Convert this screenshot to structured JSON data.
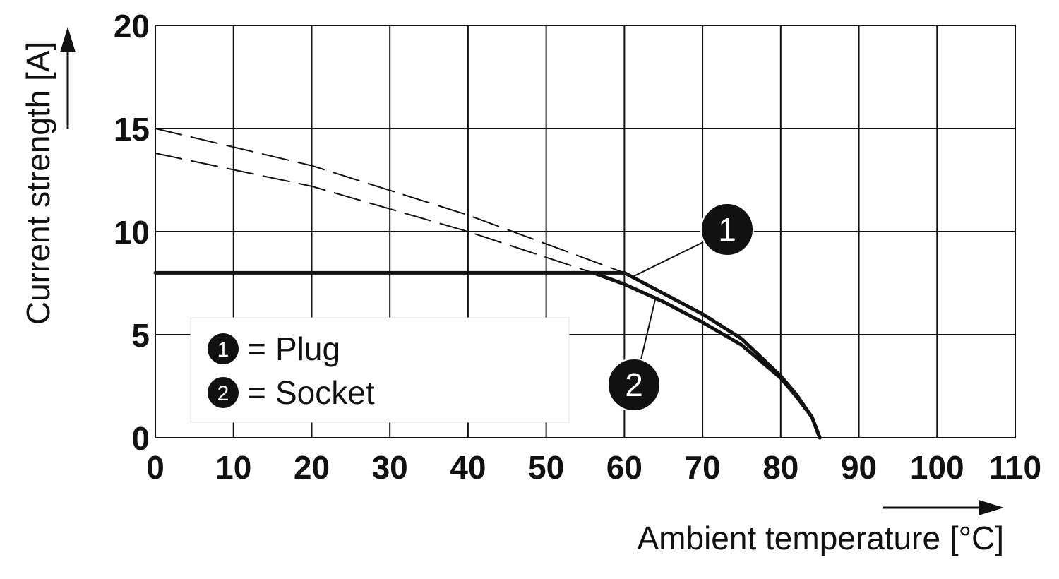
{
  "chart_data": {
    "type": "line",
    "xlabel": "Ambient temperature [°C]",
    "ylabel": "Current strength [A]",
    "xlim": [
      0,
      110
    ],
    "ylim": [
      0,
      20
    ],
    "x_ticks": [
      "0",
      "10",
      "20",
      "30",
      "40",
      "50",
      "60",
      "70",
      "80",
      "90",
      "100",
      "110"
    ],
    "y_ticks": [
      "0",
      "5",
      "10",
      "15",
      "20"
    ],
    "grid": true,
    "legend_position": "bottom-left",
    "legend": [
      {
        "marker": "1",
        "sep": "=",
        "label": "Plug"
      },
      {
        "marker": "2",
        "sep": "=",
        "label": "Socket"
      }
    ],
    "series": [
      {
        "marker": "1",
        "style": "solid",
        "x": [
          0,
          10,
          20,
          30,
          40,
          50,
          56,
          60,
          65,
          70,
          75,
          80,
          82,
          84,
          85
        ],
        "y": [
          8,
          8,
          8,
          8,
          8,
          8,
          8,
          8,
          7.0,
          6.0,
          4.8,
          3.0,
          2.1,
          1.0,
          0
        ]
      },
      {
        "marker": "2",
        "style": "solid",
        "x": [
          56,
          60,
          65,
          70,
          75,
          80,
          82,
          84,
          85
        ],
        "y": [
          8,
          7.45,
          6.6,
          5.6,
          4.5,
          2.9,
          2.0,
          1.0,
          0
        ]
      },
      {
        "marker": "1",
        "style": "dashed",
        "x": [
          0,
          20,
          40,
          60
        ],
        "y": [
          15.0,
          13.2,
          10.8,
          8.0
        ]
      },
      {
        "marker": "2",
        "style": "dashed",
        "x": [
          0,
          20,
          40,
          56
        ],
        "y": [
          13.8,
          12.2,
          10.0,
          8.0
        ]
      }
    ],
    "annotations": [
      {
        "marker": "1",
        "point": [
          61,
          7.8
        ]
      },
      {
        "marker": "2",
        "point": [
          64,
          6.8
        ]
      }
    ]
  }
}
